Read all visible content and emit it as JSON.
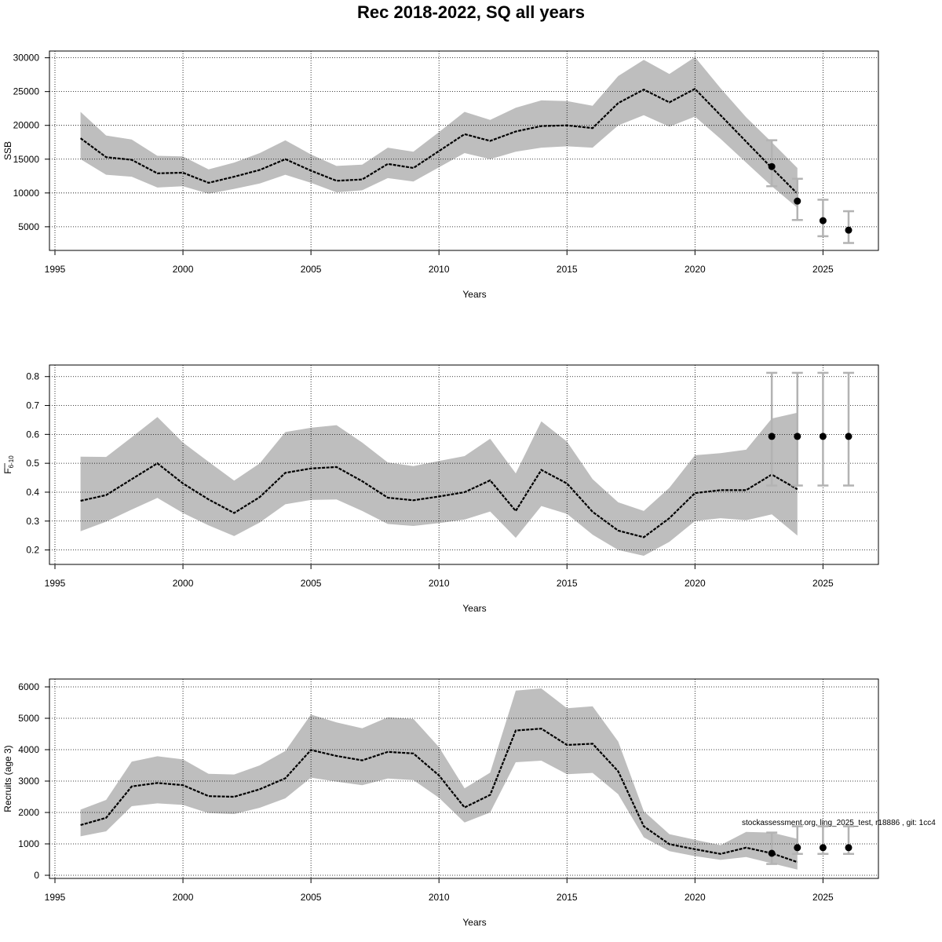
{
  "title": "Rec 2018-2022, SQ all years",
  "footnote": "stockassessment.org, ling_2025_test, r18886 , git: 1cc4",
  "colors": {
    "band": "#bebebe",
    "line": "#000000",
    "errorbar": "#b3b3b3",
    "point": "#000000",
    "grid": "#000000"
  },
  "chart_data": [
    {
      "type": "line",
      "name": "ssb",
      "xlabel": "Years",
      "ylabel": "SSB",
      "ylabel_sub": "",
      "xlim": [
        1995,
        2026
      ],
      "ylim": [
        1500,
        31000
      ],
      "xticks": [
        1995,
        2000,
        2005,
        2010,
        2015,
        2020,
        2025
      ],
      "yticks": [
        5000,
        10000,
        15000,
        20000,
        25000,
        30000
      ],
      "grid": true,
      "years": [
        1996,
        1997,
        1998,
        1999,
        2000,
        2001,
        2002,
        2003,
        2004,
        2005,
        2006,
        2007,
        2008,
        2009,
        2010,
        2011,
        2012,
        2013,
        2014,
        2015,
        2016,
        2017,
        2018,
        2019,
        2020,
        2021,
        2022,
        2023,
        2024
      ],
      "estimate": [
        18100,
        15300,
        14900,
        12900,
        13000,
        11500,
        12400,
        13400,
        15000,
        13300,
        11800,
        12000,
        14300,
        13700,
        16200,
        18700,
        17700,
        19100,
        19900,
        20000,
        19600,
        23300,
        25300,
        23400,
        25400,
        21500,
        17600,
        13700,
        9900
      ],
      "lower": [
        15000,
        12700,
        12400,
        10800,
        11000,
        9900,
        10600,
        11400,
        12700,
        11500,
        10100,
        10400,
        12200,
        11700,
        13800,
        15900,
        15000,
        16100,
        16700,
        16900,
        16700,
        20000,
        21500,
        19800,
        21300,
        18000,
        14500,
        11000,
        7800
      ],
      "upper": [
        22000,
        18500,
        17900,
        15500,
        15400,
        13500,
        14500,
        15900,
        17800,
        15700,
        14000,
        14200,
        16700,
        16100,
        19000,
        22000,
        20800,
        22600,
        23700,
        23600,
        22900,
        27300,
        29700,
        27600,
        30100,
        25500,
        21200,
        17500,
        13700
      ],
      "projections": [
        {
          "year": 2023,
          "value": 13900,
          "low": 11000,
          "high": 17800
        },
        {
          "year": 2024,
          "value": 8800,
          "low": 6000,
          "high": 12100
        },
        {
          "year": 2025,
          "value": 5900,
          "low": 3600,
          "high": 9000
        },
        {
          "year": 2026,
          "value": 4500,
          "low": 2600,
          "high": 7300
        }
      ]
    },
    {
      "type": "line",
      "name": "fbar",
      "xlabel": "Years",
      "ylabel": "F",
      "ylabel_sub": "6-10",
      "xlim": [
        1995,
        2026
      ],
      "ylim": [
        0.15,
        0.84
      ],
      "xticks": [
        1995,
        2000,
        2005,
        2010,
        2015,
        2020,
        2025
      ],
      "yticks": [
        0.2,
        0.3,
        0.4,
        0.5,
        0.6,
        0.7,
        0.8
      ],
      "grid": true,
      "years": [
        1996,
        1997,
        1998,
        1999,
        2000,
        2001,
        2002,
        2003,
        2004,
        2005,
        2006,
        2007,
        2008,
        2009,
        2010,
        2011,
        2012,
        2013,
        2014,
        2015,
        2016,
        2017,
        2018,
        2019,
        2020,
        2021,
        2022,
        2023,
        2024
      ],
      "estimate": [
        0.37,
        0.39,
        0.445,
        0.5,
        0.43,
        0.375,
        0.328,
        0.383,
        0.467,
        0.482,
        0.487,
        0.438,
        0.381,
        0.372,
        0.385,
        0.4,
        0.441,
        0.335,
        0.477,
        0.43,
        0.332,
        0.267,
        0.244,
        0.31,
        0.397,
        0.407,
        0.407,
        0.461,
        0.41
      ],
      "lower": [
        0.265,
        0.298,
        0.34,
        0.38,
        0.328,
        0.285,
        0.248,
        0.295,
        0.358,
        0.373,
        0.375,
        0.335,
        0.29,
        0.283,
        0.293,
        0.305,
        0.333,
        0.242,
        0.352,
        0.325,
        0.253,
        0.2,
        0.18,
        0.228,
        0.3,
        0.31,
        0.303,
        0.323,
        0.25
      ],
      "upper": [
        0.523,
        0.522,
        0.59,
        0.66,
        0.572,
        0.505,
        0.44,
        0.5,
        0.608,
        0.623,
        0.632,
        0.572,
        0.503,
        0.49,
        0.508,
        0.525,
        0.585,
        0.465,
        0.645,
        0.575,
        0.445,
        0.365,
        0.335,
        0.415,
        0.528,
        0.535,
        0.547,
        0.655,
        0.675
      ],
      "projections": [
        {
          "year": 2023,
          "value": 0.593,
          "low": 0.423,
          "high": 0.813
        },
        {
          "year": 2024,
          "value": 0.593,
          "low": 0.423,
          "high": 0.813
        },
        {
          "year": 2025,
          "value": 0.593,
          "low": 0.423,
          "high": 0.813
        },
        {
          "year": 2026,
          "value": 0.593,
          "low": 0.423,
          "high": 0.813
        }
      ]
    },
    {
      "type": "line",
      "name": "recruits",
      "xlabel": "Years",
      "ylabel": "Recruits (age 3)",
      "ylabel_sub": "",
      "xlim": [
        1995,
        2026
      ],
      "ylim": [
        -100,
        6250
      ],
      "xticks": [
        1995,
        2000,
        2005,
        2010,
        2015,
        2020,
        2025
      ],
      "yticks": [
        0,
        1000,
        2000,
        3000,
        4000,
        5000,
        6000
      ],
      "grid": true,
      "years": [
        1996,
        1997,
        1998,
        1999,
        2000,
        2001,
        2002,
        2003,
        2004,
        2005,
        2006,
        2007,
        2008,
        2009,
        2010,
        2011,
        2012,
        2013,
        2014,
        2015,
        2016,
        2017,
        2018,
        2019,
        2020,
        2021,
        2022,
        2023,
        2024
      ],
      "estimate": [
        1600,
        1830,
        2830,
        2940,
        2870,
        2520,
        2500,
        2740,
        3090,
        3990,
        3800,
        3660,
        3930,
        3880,
        3180,
        2160,
        2560,
        4610,
        4670,
        4150,
        4190,
        3310,
        1560,
        990,
        830,
        680,
        880,
        700,
        420
      ],
      "lower": [
        1240,
        1400,
        2200,
        2290,
        2240,
        1980,
        1950,
        2150,
        2450,
        3110,
        2980,
        2870,
        3080,
        3030,
        2470,
        1680,
        2000,
        3600,
        3650,
        3220,
        3260,
        2580,
        1210,
        770,
        610,
        490,
        580,
        380,
        180
      ],
      "upper": [
        2090,
        2400,
        3620,
        3790,
        3690,
        3230,
        3210,
        3500,
        3960,
        5120,
        4870,
        4680,
        5030,
        4980,
        4080,
        2770,
        3270,
        5880,
        5950,
        5320,
        5380,
        4260,
        2040,
        1310,
        1130,
        960,
        1380,
        1360,
        1160
      ],
      "projections": [
        {
          "year": 2023,
          "value": 700,
          "low": 360,
          "high": 1360
        },
        {
          "year": 2024,
          "value": 880,
          "low": 680,
          "high": 1560
        },
        {
          "year": 2025,
          "value": 880,
          "low": 680,
          "high": 1560
        },
        {
          "year": 2026,
          "value": 880,
          "low": 680,
          "high": 1560
        }
      ]
    }
  ]
}
